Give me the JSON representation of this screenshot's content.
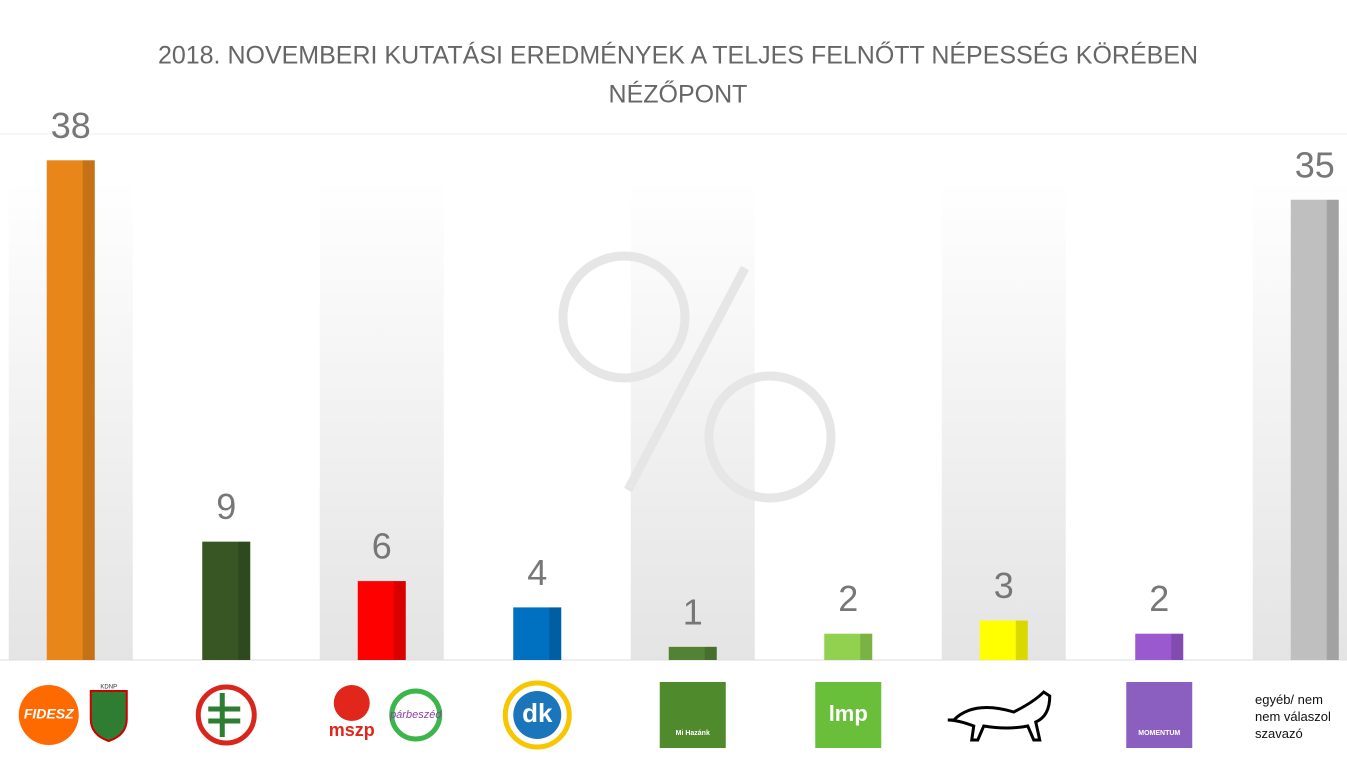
{
  "chart_data": {
    "type": "bar",
    "title": "2018. NOVEMBERI KUTATÁSI EREDMÉNYEK A TELJES FELNŐTT NÉPESSÉG KÖRÉBEN",
    "subtitle": "NÉZŐPONT",
    "categories": [
      "FIDESZ",
      null,
      "mszp",
      "dk",
      "Mi Hazánk",
      "lmp",
      null,
      "MOMENTUM",
      "egyéb/ nem nem válaszol szavazó"
    ],
    "category_sublabels": [
      "KDNP",
      null,
      "párbeszéd",
      null,
      null,
      null,
      null,
      null,
      null
    ],
    "values": [
      38,
      9,
      6,
      4,
      1,
      2,
      3,
      2,
      35
    ],
    "colors": [
      "#e8861a",
      "#375623",
      "#ff0000",
      "#0070c0",
      "#548235",
      "#92d050",
      "#ffff00",
      "#9b59d0",
      "#bfbfbf"
    ],
    "ylim": [
      0,
      40
    ]
  }
}
